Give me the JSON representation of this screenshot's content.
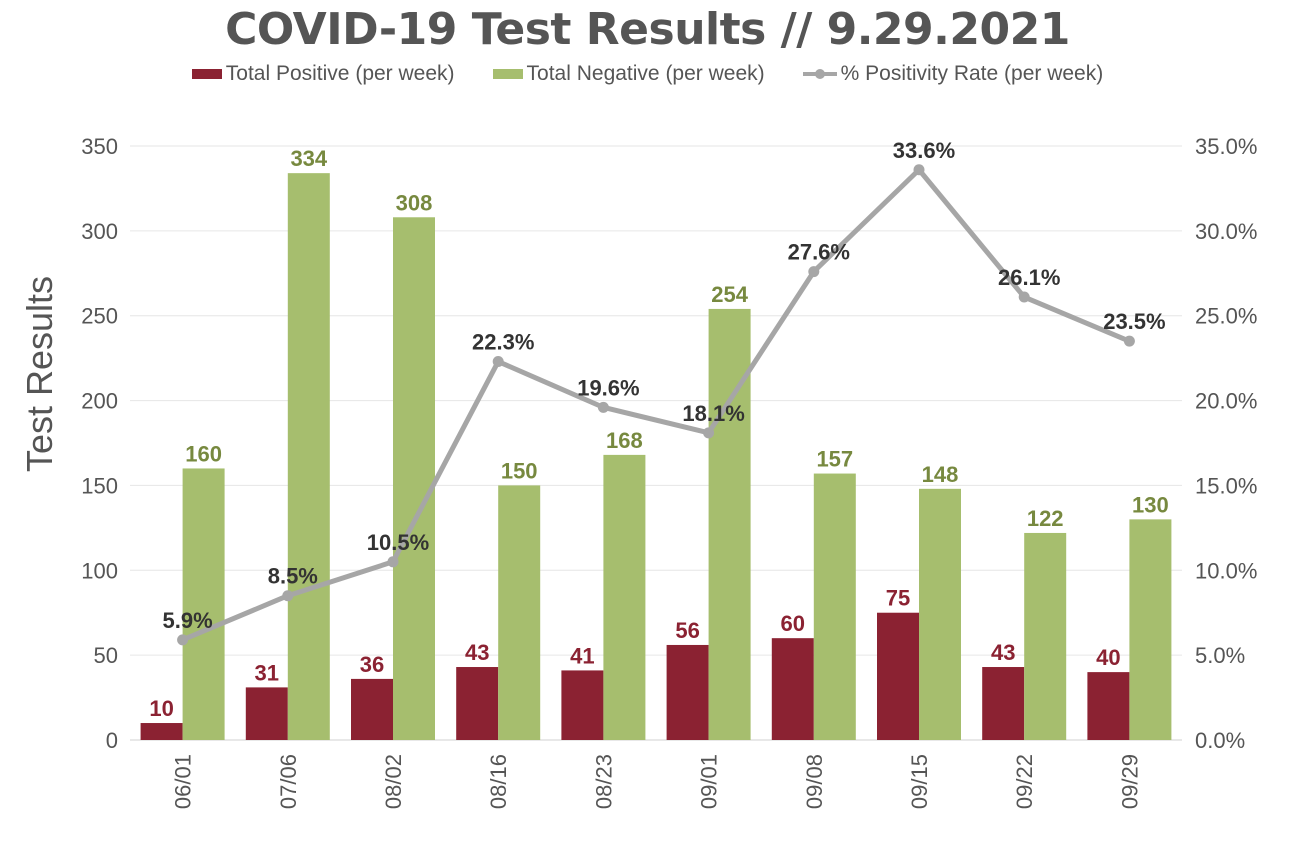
{
  "colors": {
    "positive": "#8B2232",
    "negative": "#A6BE6E",
    "rate": "#A6A6A6",
    "rate_label": "#333333",
    "axis_text": "#555555",
    "grid": "#E6E6E6"
  },
  "chart_data": {
    "type": "bar",
    "title": "COVID-19 Test Results // 9.29.2021",
    "ylabel": "Test Results",
    "ylim": [
      0,
      350
    ],
    "y_ticks": [
      "0",
      "50",
      "100",
      "150",
      "200",
      "250",
      "300",
      "350"
    ],
    "y2lim": [
      0,
      35
    ],
    "y2_ticks": [
      "0.0%",
      "5.0%",
      "10.0%",
      "15.0%",
      "20.0%",
      "25.0%",
      "30.0%",
      "35.0%"
    ],
    "grid": true,
    "legend": "top",
    "categories": [
      "06/01",
      "07/06",
      "08/02",
      "08/16",
      "08/23",
      "09/01",
      "09/08",
      "09/15",
      "09/22",
      "09/29"
    ],
    "series": [
      {
        "name": "Total Positive (per week)",
        "type": "bar",
        "values": [
          10,
          31,
          36,
          43,
          41,
          56,
          60,
          75,
          43,
          40
        ]
      },
      {
        "name": "Total Negative (per week)",
        "type": "bar",
        "values": [
          160,
          334,
          308,
          150,
          168,
          254,
          157,
          148,
          122,
          130
        ]
      },
      {
        "name": "% Positivity Rate (per week)",
        "type": "line",
        "axis": "right",
        "values": [
          5.9,
          8.5,
          10.5,
          22.3,
          19.6,
          18.1,
          27.6,
          33.6,
          26.1,
          23.5
        ],
        "labels": [
          "5.9%",
          "8.5%",
          "10.5%",
          "22.3%",
          "19.6%",
          "18.1%",
          "27.6%",
          "33.6%",
          "26.1%",
          "23.5%"
        ]
      }
    ]
  }
}
